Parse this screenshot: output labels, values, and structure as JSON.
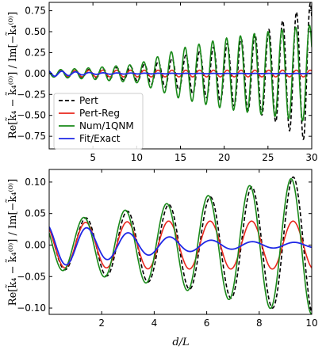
{
  "chart_data": [
    {
      "type": "line",
      "panel": "top",
      "xlabel": "",
      "ylabel": "Re[k̃₄ − k̃₄⁽⁰⁾] / Im[−k̃₄⁽⁰⁾]",
      "xlim": [
        0,
        30
      ],
      "ylim": [
        -0.9,
        0.85
      ],
      "xticks": [
        5,
        10,
        15,
        20,
        25,
        30
      ],
      "yticks": [
        -0.75,
        -0.5,
        -0.25,
        0.0,
        0.25,
        0.5,
        0.75
      ],
      "ytick_labels": [
        "−0.75",
        "−0.50",
        "−0.25",
        "0.00",
        "0.25",
        "0.50",
        "0.75"
      ],
      "xtick_labels": [
        "5",
        "10",
        "15",
        "20",
        "25",
        "30"
      ],
      "grid": false,
      "legend_position": "lower-left",
      "wave_period": 1.58,
      "series": [
        {
          "name": "Pert",
          "color": "#000000",
          "dash": "dashed",
          "envelope_x": [
            0,
            5,
            10,
            15,
            20,
            25,
            30
          ],
          "envelope_y": [
            0.035,
            0.05,
            0.09,
            0.2,
            0.35,
            0.52,
            0.85
          ]
        },
        {
          "name": "Pert-Reg",
          "color": "#e8281e",
          "dash": "solid",
          "envelope_x": [
            0,
            5,
            10,
            15,
            20,
            25,
            30
          ],
          "envelope_y": [
            0.035,
            0.04,
            0.04,
            0.04,
            0.04,
            0.04,
            0.04
          ]
        },
        {
          "name": "Num/1QNM",
          "color": "#1a8a1a",
          "dash": "solid",
          "envelope_x": [
            0,
            5,
            10,
            15,
            20,
            25,
            30
          ],
          "envelope_y": [
            0.04,
            0.07,
            0.11,
            0.3,
            0.42,
            0.5,
            0.58
          ]
        },
        {
          "name": "Fit/Exact",
          "color": "#1f28e6",
          "dash": "solid",
          "envelope_x": [
            0,
            5,
            10,
            15,
            20,
            25,
            30
          ],
          "envelope_y": [
            0.035,
            0.01,
            0.005,
            0.003,
            0.002,
            0.002,
            0.002
          ]
        }
      ]
    },
    {
      "type": "line",
      "panel": "bottom",
      "xlabel": "d/L",
      "ylabel": "Re[k̃₄ − k̃₄⁽⁰⁾] / Im[−k̃₄⁽⁰⁾]",
      "xlim": [
        0,
        10
      ],
      "ylim": [
        -0.11,
        0.12
      ],
      "xticks": [
        2,
        4,
        6,
        8,
        10
      ],
      "xtick_labels": [
        "2",
        "4",
        "6",
        "8",
        "10"
      ],
      "yticks": [
        -0.1,
        -0.05,
        0.0,
        0.05,
        0.1
      ],
      "ytick_labels": [
        "−0.10",
        "−0.05",
        "0.00",
        "0.05",
        "0.10"
      ],
      "grid": false,
      "wave_period": 1.58,
      "series": [
        {
          "name": "Pert",
          "color": "#000000",
          "dash": "dashed",
          "envelope_x": [
            0,
            1,
            2,
            4,
            6,
            8,
            10
          ],
          "envelope_y": [
            0.038,
            0.04,
            0.048,
            0.06,
            0.075,
            0.095,
            0.115
          ]
        },
        {
          "name": "Pert-Reg",
          "color": "#e8281e",
          "dash": "solid",
          "envelope_x": [
            0,
            1,
            2,
            4,
            6,
            8,
            10
          ],
          "envelope_y": [
            0.036,
            0.036,
            0.036,
            0.038,
            0.038,
            0.038,
            0.038
          ]
        },
        {
          "name": "Num/1QNM",
          "color": "#1a8a1a",
          "dash": "solid",
          "envelope_x": [
            0,
            1,
            2,
            4,
            6,
            8,
            10
          ],
          "envelope_y": [
            0.04,
            0.041,
            0.05,
            0.062,
            0.078,
            0.098,
            0.11
          ]
        },
        {
          "name": "Fit/Exact",
          "color": "#1f28e6",
          "dash": "solid",
          "envelope_x": [
            0,
            1,
            2,
            4,
            6,
            8,
            10
          ],
          "envelope_y": [
            0.034,
            0.03,
            0.024,
            0.015,
            0.008,
            0.005,
            0.004
          ]
        }
      ]
    }
  ]
}
